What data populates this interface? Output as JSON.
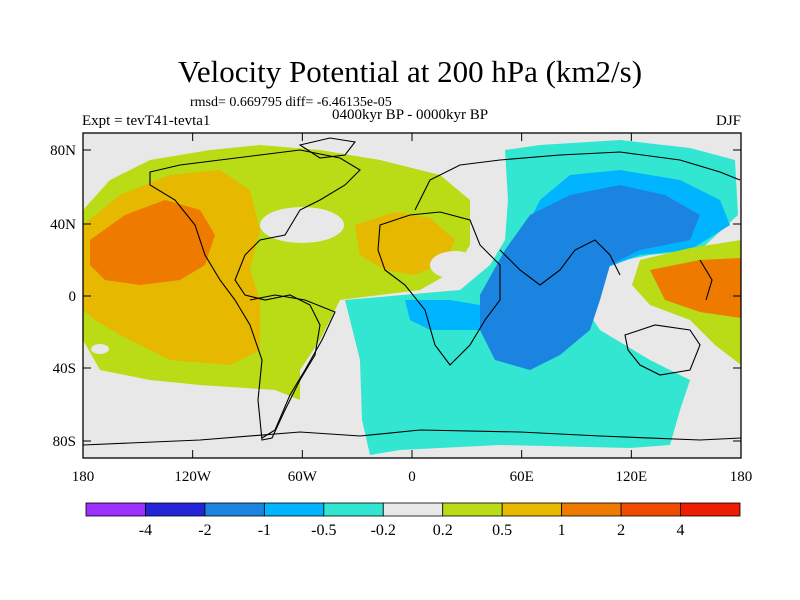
{
  "title": "Velocity Potential at 200 hPa (km2/s)",
  "stats": "rmsd= 0.669795 diff= -6.46135e-05",
  "left_label": "Expt = tevT41-tevta1",
  "center_label": "0400kyr BP - 0000kyr BP",
  "right_label": "DJF",
  "lat_labels": [
    "80N",
    "40N",
    "0",
    "40S",
    "80S"
  ],
  "lon_labels": [
    "180",
    "120W",
    "60W",
    "0",
    "60E",
    "120E",
    "180"
  ],
  "colorbar": {
    "colors": [
      "#9b30ff",
      "#2424d6",
      "#1b84e0",
      "#00b4ff",
      "#33e6d2",
      "#e8e8e8",
      "#b9dc16",
      "#e6b800",
      "#ee7a00",
      "#ee4a00",
      "#ee1c00"
    ],
    "labels": [
      "-4",
      "-2",
      "-1",
      "-0.5",
      "-0.2",
      "0.2",
      "0.5",
      "1",
      "2",
      "4"
    ]
  },
  "fill_colors": {
    "ocean_neutral": "#e8e8e8",
    "pos_weak": "#b9dc16",
    "pos_mid": "#e6b800",
    "pos_strong": "#ee7a00",
    "neg_weak": "#33e6d2",
    "neg_mid": "#00b4ff",
    "neg_strong": "#1b84e0"
  }
}
